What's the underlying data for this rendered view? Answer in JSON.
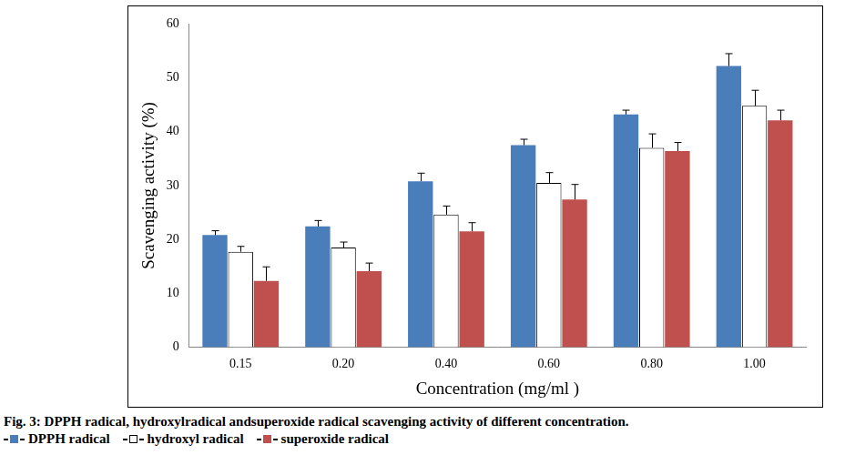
{
  "chart_data": {
    "type": "bar",
    "title": "Fig. 3: DPPH radical, hydroxylradical andsuperoxide radical scavenging activity of different concentration.",
    "x_label": "Concentration (mg/ml )",
    "y_label": "Scavenging activity (%)",
    "categories": [
      "0.15",
      "0.20",
      "0.40",
      "0.60",
      "0.80",
      "1.00"
    ],
    "series": [
      {
        "name": "DPPH radical",
        "color": "#4a7ebb",
        "values": [
          20.8,
          22.4,
          30.8,
          37.5,
          43.2,
          52.2
        ],
        "errors": [
          0.8,
          1.1,
          1.5,
          1.1,
          0.8,
          2.3
        ]
      },
      {
        "name": "hydroxyl radical",
        "color": "#ffffff",
        "values": [
          17.7,
          18.5,
          24.6,
          30.5,
          37.0,
          44.8
        ],
        "errors": [
          1.0,
          1.0,
          1.6,
          1.9,
          2.6,
          2.9
        ]
      },
      {
        "name": "superoxide radical",
        "color": "#c0504d",
        "values": [
          12.3,
          14.1,
          21.5,
          27.4,
          36.4,
          42.1
        ],
        "errors": [
          2.6,
          1.5,
          1.6,
          2.8,
          1.6,
          1.9
        ]
      }
    ],
    "ylim": [
      0,
      60
    ],
    "yticks": [
      0,
      10,
      20,
      30,
      40,
      50,
      60
    ],
    "grid": false
  }
}
